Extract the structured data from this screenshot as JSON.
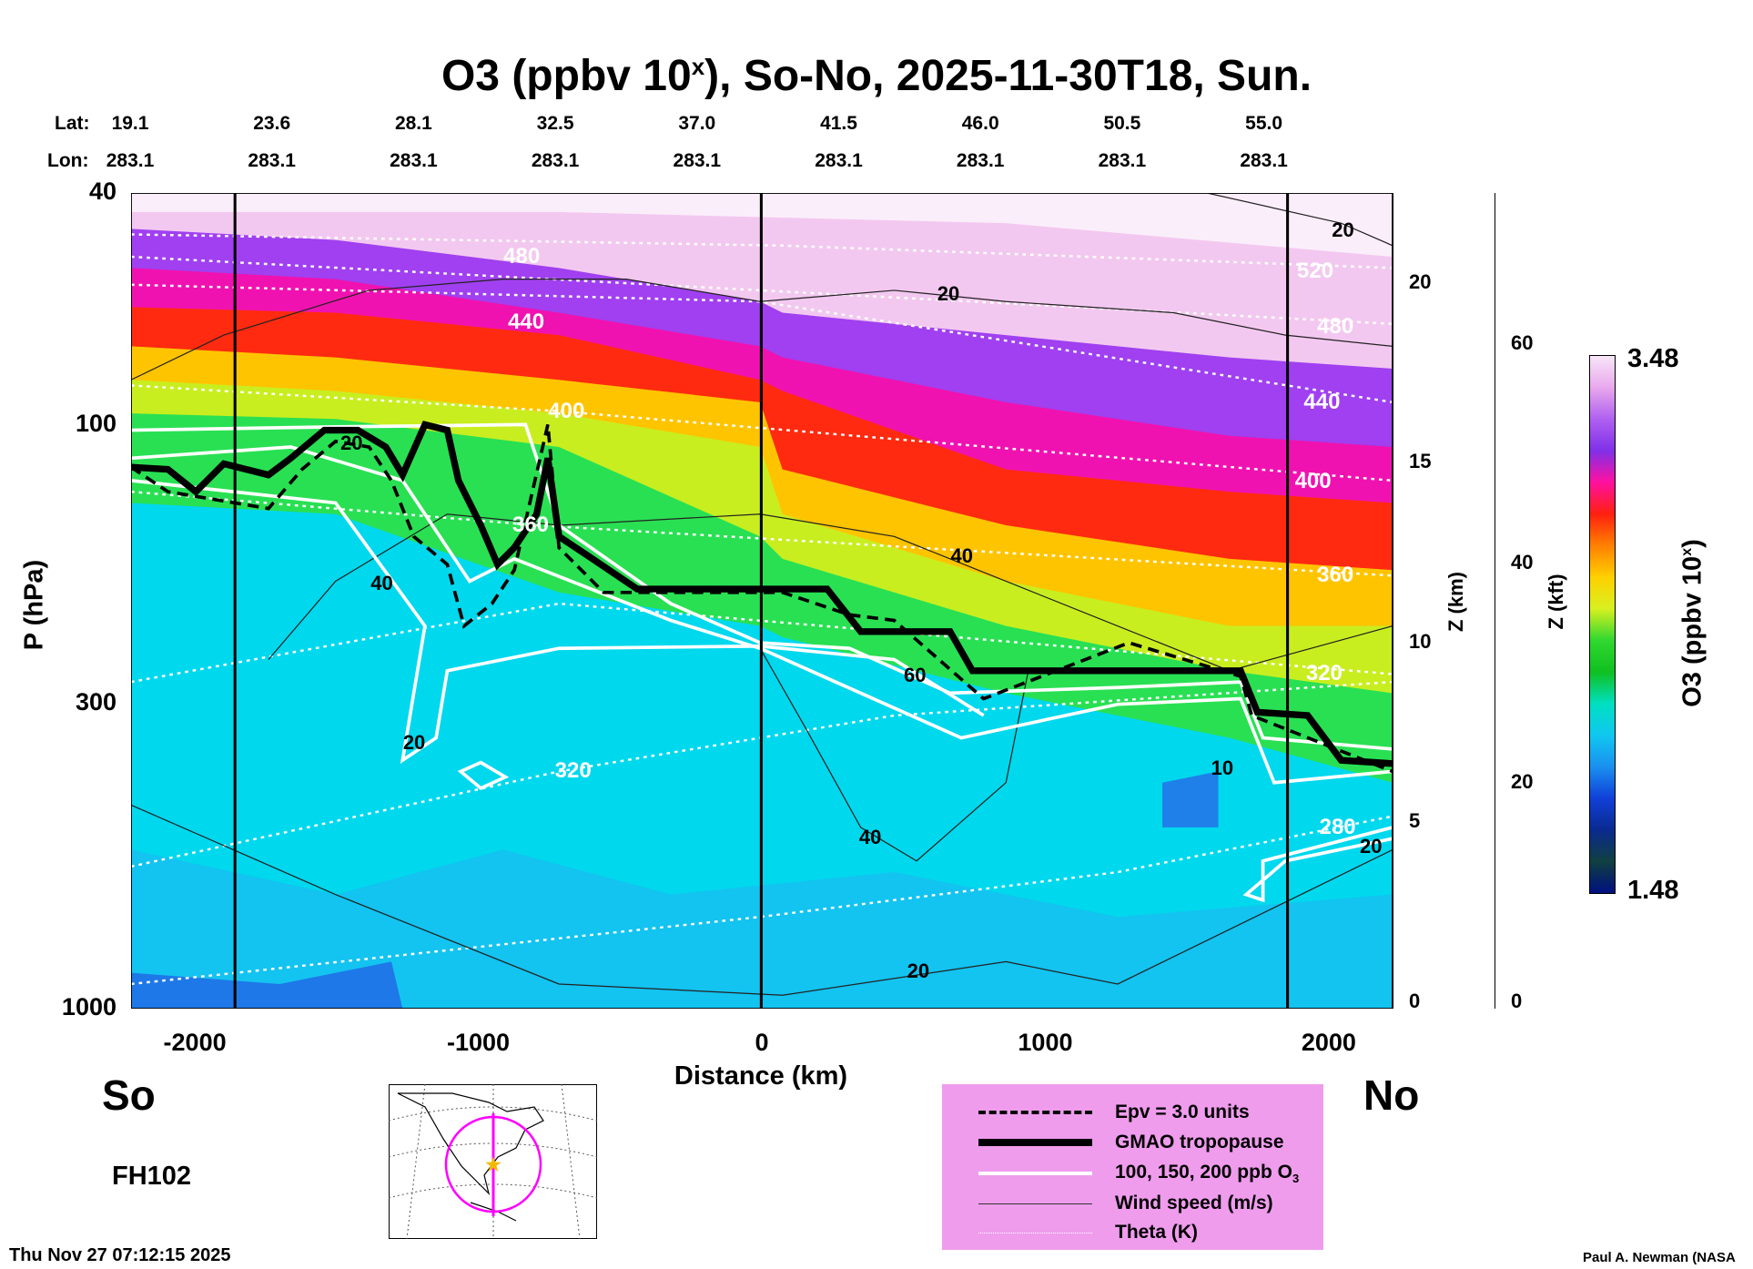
{
  "chart_data": {
    "type": "heatmap",
    "title_main": "O3 (ppbv 10",
    "title_sup": "x",
    "title_rest": "), So-No, 2025-11-30T18, Sun.",
    "lat_label": "Lat:",
    "lon_label": "Lon:",
    "lat": [
      "19.1",
      "23.6",
      "28.1",
      "32.5",
      "37.0",
      "41.5",
      "46.0",
      "50.5",
      "55.0"
    ],
    "lon": [
      "283.1",
      "283.1",
      "283.1",
      "283.1",
      "283.1",
      "283.1",
      "283.1",
      "283.1",
      "283.1"
    ],
    "xlabel": "Distance (km)",
    "xlim": [
      -2225,
      2225
    ],
    "xticks": [
      "-2000",
      "-1000",
      "0",
      "1000",
      "2000"
    ],
    "xtick_values": [
      -2000,
      -1000,
      0,
      1000,
      2000
    ],
    "ylabel": "P (hPa)",
    "ylim": [
      1000,
      40
    ],
    "yscale": "log",
    "yticks": [
      "40",
      "100",
      "300",
      "1000"
    ],
    "ytick_values": [
      40,
      100,
      300,
      1000
    ],
    "z_km_label": "Z (km)",
    "z_km_ticks": [
      "0",
      "5",
      "10",
      "15",
      "20"
    ],
    "z_kft_label": "Z (kft)",
    "z_kft_ticks": [
      "0",
      "20",
      "40",
      "60"
    ],
    "colorbar": {
      "label": "O3 (ppbv 10",
      "label_sup": "x",
      "label_end": ")",
      "max": "3.48",
      "min": "1.48"
    },
    "left_end": "So",
    "right_end": "No",
    "forecast_hour": "FH102",
    "theta_labels": [
      "440",
      "400",
      "360",
      "320",
      "400",
      "360",
      "320",
      "280",
      "480",
      "440",
      "520",
      "480"
    ],
    "wind_labels": [
      "20",
      "40",
      "20",
      "20",
      "40",
      "60",
      "40",
      "20",
      "10",
      "20",
      "20"
    ],
    "legend": [
      {
        "label": "Epv = 3.0 units"
      },
      {
        "label": "GMAO tropopause"
      },
      {
        "label": "100, 150, 200 ppb O",
        "sub": "3"
      },
      {
        "label": "Wind speed (m/s)"
      },
      {
        "label": "Theta (K)"
      }
    ]
  },
  "footer": {
    "timestamp": "Thu Nov 27 07:12:15 2025",
    "credit": "Paul A. Newman (NASA"
  },
  "colors": {
    "legend_bg": "#ef9ced",
    "trajectory": "#ff00ff",
    "star": "#f5b800"
  }
}
